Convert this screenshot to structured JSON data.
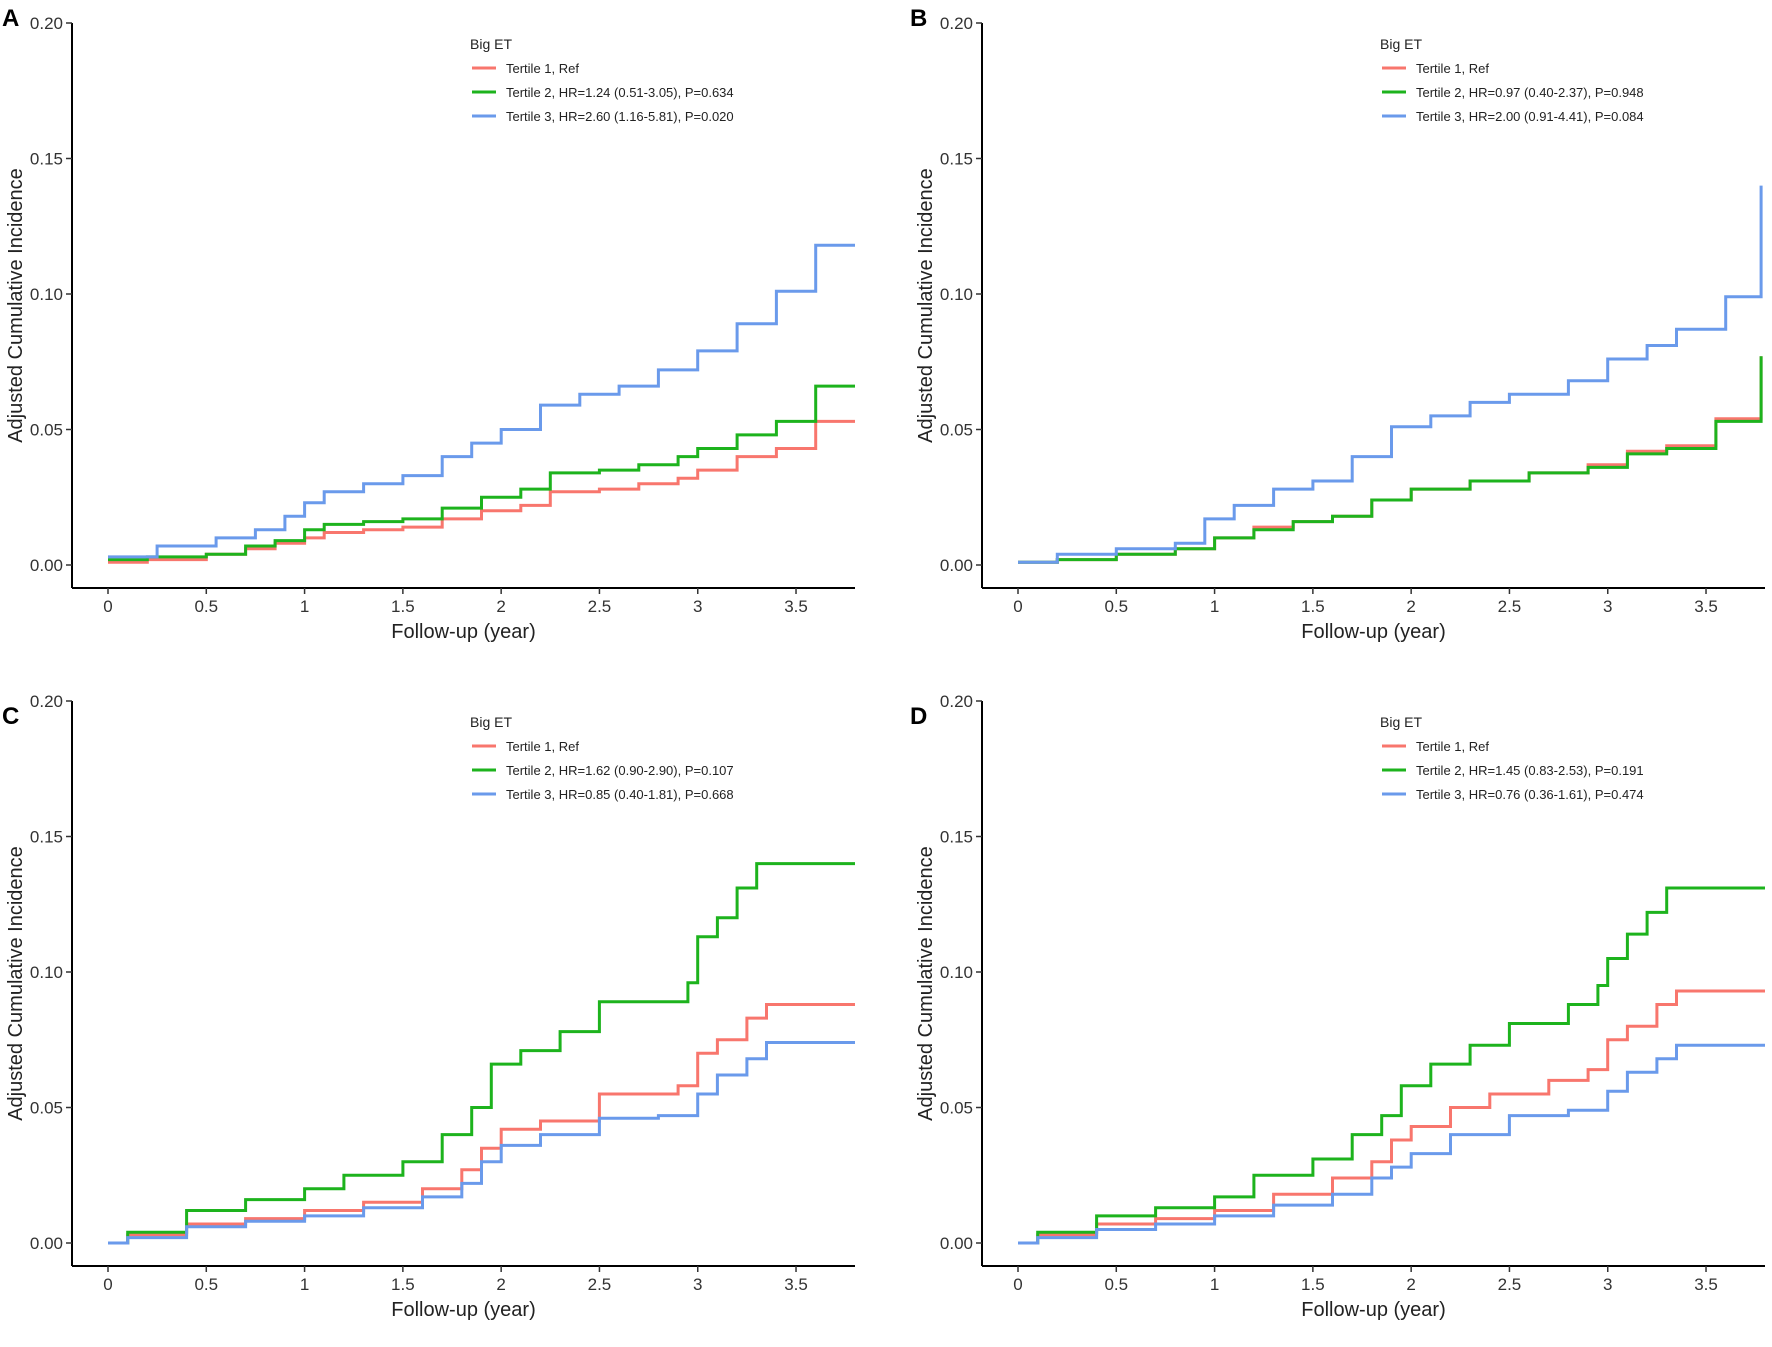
{
  "colors": {
    "tertile1": "#F8766D",
    "tertile2": "#1DB31D",
    "tertile3": "#6A9AEB",
    "axis": "#000000"
  },
  "chart_data": [
    {
      "panel": "A",
      "type": "line",
      "step": true,
      "xlabel": "Follow-up (year)",
      "ylabel": "Adjusted Cumulative Incidence",
      "xlim": [
        0,
        3.8
      ],
      "ylim": [
        0,
        0.2
      ],
      "xticks": [
        "0",
        "0.5",
        "1",
        "1.5",
        "2",
        "2.5",
        "3",
        "3.5"
      ],
      "yticks": [
        "0.00",
        "0.05",
        "0.10",
        "0.15",
        "0.20"
      ],
      "legend_title": "Big ET",
      "legend_position": "top-center",
      "series": [
        {
          "name": "Tertile 1, Ref",
          "color_key": "tertile1",
          "x": [
            0,
            0.2,
            0.5,
            0.7,
            0.85,
            1.0,
            1.1,
            1.3,
            1.5,
            1.7,
            1.9,
            2.1,
            2.25,
            2.5,
            2.7,
            2.9,
            3.0,
            3.2,
            3.4,
            3.6,
            3.8
          ],
          "y": [
            0.001,
            0.002,
            0.004,
            0.006,
            0.008,
            0.01,
            0.012,
            0.013,
            0.014,
            0.017,
            0.02,
            0.022,
            0.027,
            0.028,
            0.03,
            0.032,
            0.035,
            0.04,
            0.043,
            0.053,
            0.053
          ]
        },
        {
          "name": "Tertile 2, HR=1.24 (0.51-3.05), P=0.634",
          "color_key": "tertile2",
          "x": [
            0,
            0.2,
            0.5,
            0.7,
            0.85,
            1.0,
            1.1,
            1.3,
            1.5,
            1.7,
            1.9,
            2.1,
            2.25,
            2.5,
            2.7,
            2.9,
            3.0,
            3.2,
            3.4,
            3.6,
            3.8
          ],
          "y": [
            0.002,
            0.003,
            0.004,
            0.007,
            0.009,
            0.013,
            0.015,
            0.016,
            0.017,
            0.021,
            0.025,
            0.028,
            0.034,
            0.035,
            0.037,
            0.04,
            0.043,
            0.048,
            0.053,
            0.066,
            0.066
          ]
        },
        {
          "name": "Tertile 3, HR=2.60 (1.16-5.81), P=0.020",
          "color_key": "tertile3",
          "x": [
            0,
            0.25,
            0.55,
            0.75,
            0.9,
            1.0,
            1.1,
            1.3,
            1.5,
            1.7,
            1.85,
            2.0,
            2.2,
            2.4,
            2.6,
            2.8,
            3.0,
            3.2,
            3.4,
            3.6,
            3.8
          ],
          "y": [
            0.003,
            0.007,
            0.01,
            0.013,
            0.018,
            0.023,
            0.027,
            0.03,
            0.033,
            0.04,
            0.045,
            0.05,
            0.059,
            0.063,
            0.066,
            0.072,
            0.079,
            0.089,
            0.101,
            0.118,
            0.118
          ]
        }
      ]
    },
    {
      "panel": "B",
      "type": "line",
      "step": true,
      "xlabel": "Follow-up (year)",
      "ylabel": "Adjusted Cumulative Incidence",
      "xlim": [
        0,
        3.8
      ],
      "ylim": [
        0,
        0.2
      ],
      "xticks": [
        "0",
        "0.5",
        "1",
        "1.5",
        "2",
        "2.5",
        "3",
        "3.5"
      ],
      "yticks": [
        "0.00",
        "0.05",
        "0.10",
        "0.15",
        "0.20"
      ],
      "legend_title": "Big ET",
      "legend_position": "top-center",
      "series": [
        {
          "name": "Tertile 1, Ref",
          "color_key": "tertile1",
          "x": [
            0,
            0.2,
            0.5,
            0.8,
            1.0,
            1.2,
            1.4,
            1.6,
            1.8,
            2.0,
            2.3,
            2.6,
            2.9,
            3.1,
            3.3,
            3.55,
            3.78
          ],
          "y": [
            0.001,
            0.002,
            0.004,
            0.006,
            0.01,
            0.014,
            0.016,
            0.018,
            0.024,
            0.028,
            0.031,
            0.034,
            0.037,
            0.042,
            0.044,
            0.054,
            0.077
          ]
        },
        {
          "name": "Tertile 2, HR=0.97 (0.40-2.37), P=0.948",
          "color_key": "tertile2",
          "x": [
            0,
            0.2,
            0.5,
            0.8,
            1.0,
            1.2,
            1.4,
            1.6,
            1.8,
            2.0,
            2.3,
            2.6,
            2.9,
            3.1,
            3.3,
            3.55,
            3.78
          ],
          "y": [
            0.001,
            0.002,
            0.004,
            0.006,
            0.01,
            0.013,
            0.016,
            0.018,
            0.024,
            0.028,
            0.031,
            0.034,
            0.036,
            0.041,
            0.043,
            0.053,
            0.077
          ]
        },
        {
          "name": "Tertile 3, HR=2.00 (0.91-4.41), P=0.084",
          "color_key": "tertile3",
          "x": [
            0,
            0.2,
            0.5,
            0.8,
            0.95,
            1.1,
            1.3,
            1.5,
            1.7,
            1.9,
            2.1,
            2.3,
            2.5,
            2.8,
            3.0,
            3.2,
            3.35,
            3.6,
            3.78
          ],
          "y": [
            0.001,
            0.004,
            0.006,
            0.008,
            0.017,
            0.022,
            0.028,
            0.031,
            0.04,
            0.051,
            0.055,
            0.06,
            0.063,
            0.068,
            0.076,
            0.081,
            0.087,
            0.099,
            0.14
          ]
        }
      ]
    },
    {
      "panel": "C",
      "type": "line",
      "step": true,
      "xlabel": "Follow-up (year)",
      "ylabel": "Adjusted Cumulative Incidence",
      "xlim": [
        0,
        3.8
      ],
      "ylim": [
        0,
        0.2
      ],
      "xticks": [
        "0",
        "0.5",
        "1",
        "1.5",
        "2",
        "2.5",
        "3",
        "3.5"
      ],
      "yticks": [
        "0.00",
        "0.05",
        "0.10",
        "0.15",
        "0.20"
      ],
      "legend_title": "Big ET",
      "legend_position": "top-center",
      "series": [
        {
          "name": "Tertile 1, Ref",
          "color_key": "tertile1",
          "x": [
            0,
            0.1,
            0.4,
            0.7,
            1.0,
            1.3,
            1.6,
            1.8,
            1.9,
            2.0,
            2.2,
            2.5,
            2.75,
            2.9,
            3.0,
            3.1,
            3.25,
            3.35,
            3.8
          ],
          "y": [
            0,
            0.003,
            0.007,
            0.009,
            0.012,
            0.015,
            0.02,
            0.027,
            0.035,
            0.042,
            0.045,
            0.055,
            0.055,
            0.058,
            0.07,
            0.075,
            0.083,
            0.088,
            0.088
          ]
        },
        {
          "name": "Tertile 2, HR=1.62 (0.90-2.90), P=0.107",
          "color_key": "tertile2",
          "x": [
            0,
            0.1,
            0.4,
            0.7,
            1.0,
            1.2,
            1.5,
            1.7,
            1.85,
            1.95,
            2.1,
            2.3,
            2.5,
            2.8,
            2.95,
            3.0,
            3.1,
            3.2,
            3.3,
            3.8
          ],
          "y": [
            0,
            0.004,
            0.012,
            0.016,
            0.02,
            0.025,
            0.03,
            0.04,
            0.05,
            0.066,
            0.071,
            0.078,
            0.089,
            0.089,
            0.096,
            0.113,
            0.12,
            0.131,
            0.14,
            0.14
          ]
        },
        {
          "name": "Tertile 3, HR=0.85 (0.40-1.81), P=0.668",
          "color_key": "tertile3",
          "x": [
            0,
            0.1,
            0.4,
            0.7,
            1.0,
            1.3,
            1.6,
            1.8,
            1.9,
            2.0,
            2.2,
            2.5,
            2.8,
            3.0,
            3.1,
            3.25,
            3.35,
            3.8
          ],
          "y": [
            0,
            0.002,
            0.006,
            0.008,
            0.01,
            0.013,
            0.017,
            0.022,
            0.03,
            0.036,
            0.04,
            0.046,
            0.047,
            0.055,
            0.062,
            0.068,
            0.074,
            0.074
          ]
        }
      ]
    },
    {
      "panel": "D",
      "type": "line",
      "step": true,
      "xlabel": "Follow-up (year)",
      "ylabel": "Adjusted Cumulative Incidence",
      "xlim": [
        0,
        3.8
      ],
      "ylim": [
        0,
        0.2
      ],
      "xticks": [
        "0",
        "0.5",
        "1",
        "1.5",
        "2",
        "2.5",
        "3",
        "3.5"
      ],
      "yticks": [
        "0.00",
        "0.05",
        "0.10",
        "0.15",
        "0.20"
      ],
      "legend_title": "Big ET",
      "legend_position": "top-center",
      "series": [
        {
          "name": "Tertile 1, Ref",
          "color_key": "tertile1",
          "x": [
            0,
            0.1,
            0.4,
            0.7,
            1.0,
            1.3,
            1.6,
            1.8,
            1.9,
            2.0,
            2.2,
            2.4,
            2.7,
            2.9,
            3.0,
            3.1,
            3.25,
            3.35,
            3.8
          ],
          "y": [
            0,
            0.003,
            0.007,
            0.009,
            0.012,
            0.018,
            0.024,
            0.03,
            0.038,
            0.043,
            0.05,
            0.055,
            0.06,
            0.064,
            0.075,
            0.08,
            0.088,
            0.093,
            0.093
          ]
        },
        {
          "name": "Tertile 2, HR=1.45 (0.83-2.53), P=0.191",
          "color_key": "tertile2",
          "x": [
            0,
            0.1,
            0.4,
            0.7,
            1.0,
            1.2,
            1.5,
            1.7,
            1.85,
            1.95,
            2.1,
            2.3,
            2.5,
            2.8,
            2.95,
            3.0,
            3.1,
            3.2,
            3.3,
            3.8
          ],
          "y": [
            0,
            0.004,
            0.01,
            0.013,
            0.017,
            0.025,
            0.031,
            0.04,
            0.047,
            0.058,
            0.066,
            0.073,
            0.081,
            0.088,
            0.095,
            0.105,
            0.114,
            0.122,
            0.131,
            0.131
          ]
        },
        {
          "name": "Tertile 3, HR=0.76 (0.36-1.61), P=0.474",
          "color_key": "tertile3",
          "x": [
            0,
            0.1,
            0.4,
            0.7,
            1.0,
            1.3,
            1.6,
            1.8,
            1.9,
            2.0,
            2.2,
            2.5,
            2.8,
            3.0,
            3.1,
            3.25,
            3.35,
            3.8
          ],
          "y": [
            0,
            0.002,
            0.005,
            0.007,
            0.01,
            0.014,
            0.018,
            0.024,
            0.028,
            0.033,
            0.04,
            0.047,
            0.049,
            0.056,
            0.063,
            0.068,
            0.073,
            0.073
          ]
        }
      ]
    }
  ]
}
